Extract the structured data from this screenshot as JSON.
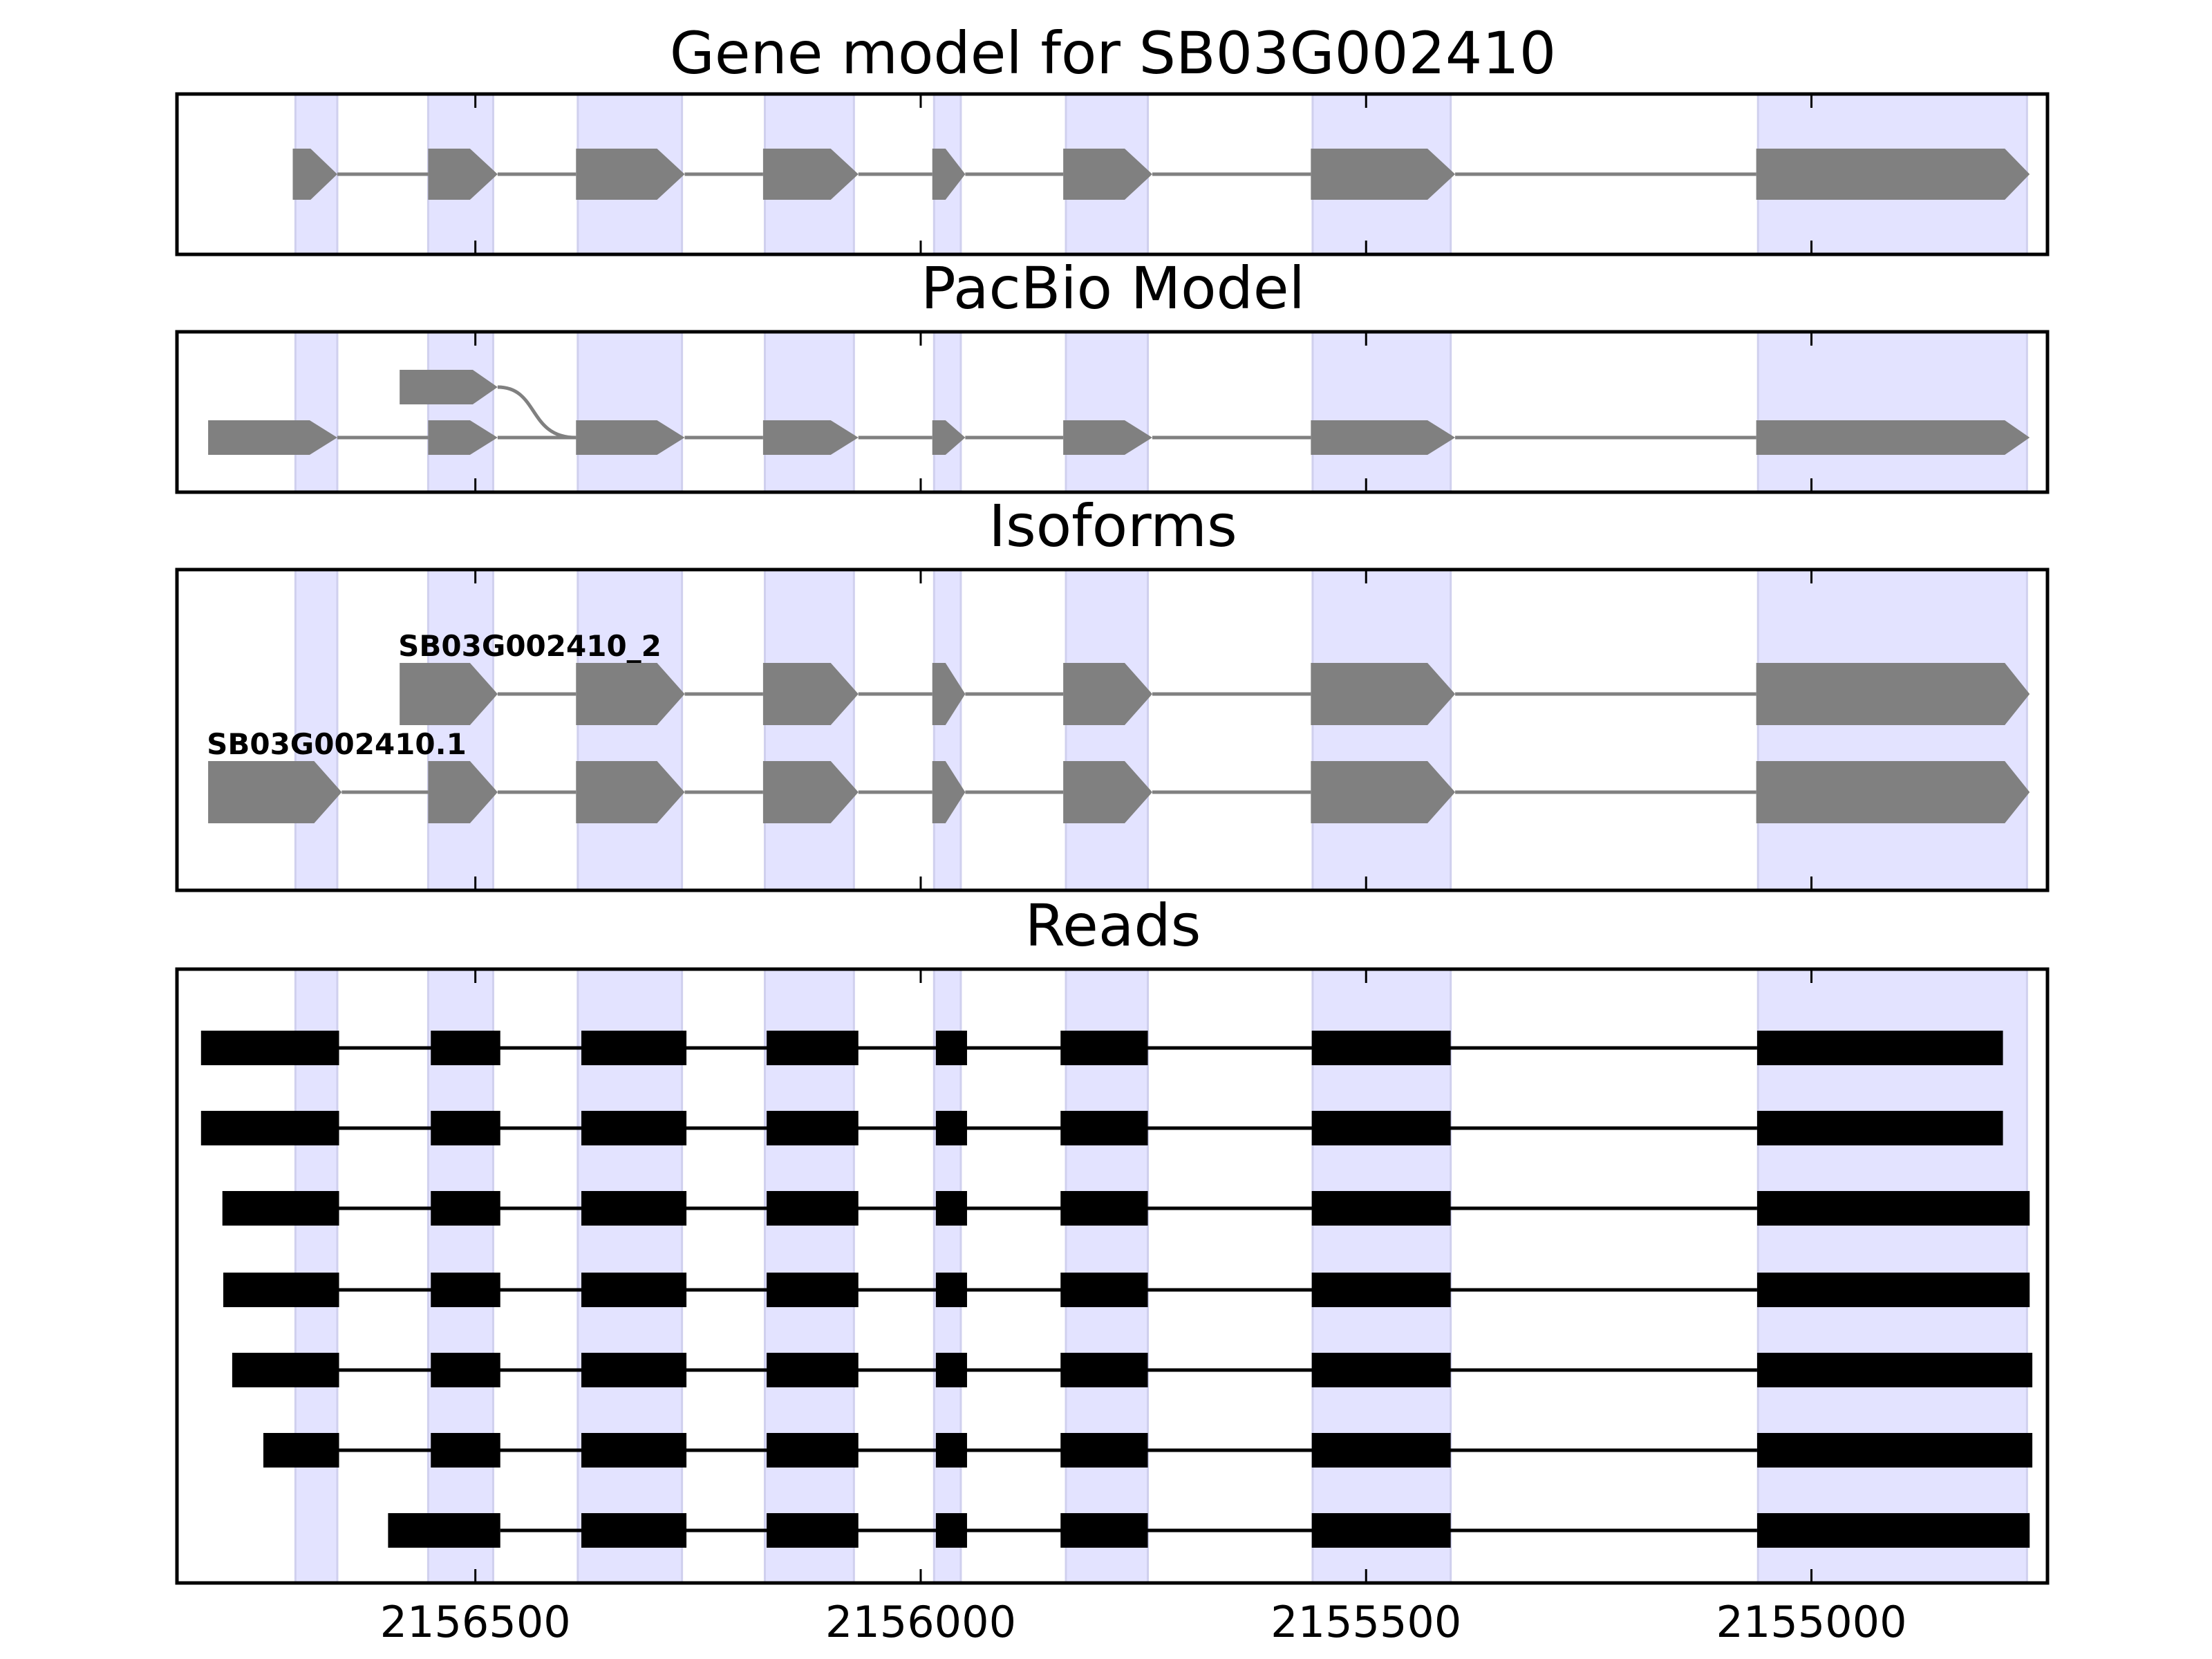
{
  "chart_data": {
    "type": "gene-track",
    "x_axis": {
      "reversed": true,
      "xlim": [
        2156835,
        2154735
      ],
      "ticks": [
        2156500,
        2156000,
        2155500,
        2155000
      ],
      "tick_labels": [
        "2156500",
        "2156000",
        "2155500",
        "2155000"
      ]
    },
    "shading_color": "#e3e3ff",
    "feature_color": "#808080",
    "read_color": "#000000",
    "shaded_exons": [
      [
        2156702,
        2156655
      ],
      [
        2156553,
        2156480
      ],
      [
        2156385,
        2156268
      ],
      [
        2156175,
        2156075
      ],
      [
        2155985,
        2155955
      ],
      [
        2155837,
        2155745
      ],
      [
        2155560,
        2155405
      ],
      [
        2155060,
        2154758
      ]
    ],
    "panels": [
      {
        "id": "gene-model",
        "title": "Gene model for SB03G002410",
        "transcripts": [
          {
            "label": "",
            "strand": "-",
            "exons": [
              [
                2156705,
                2156655
              ],
              [
                2156553,
                2156475
              ],
              [
                2156387,
                2156265
              ],
              [
                2156177,
                2156070
              ],
              [
                2155987,
                2155950
              ],
              [
                2155840,
                2155740
              ],
              [
                2155562,
                2155400
              ],
              [
                2155062,
                2154755
              ]
            ]
          }
        ]
      },
      {
        "id": "pacbio-model",
        "title": "PacBio Model",
        "transcripts": [
          {
            "label": "",
            "strand": "-",
            "exons": [
              [
                2156800,
                2156655
              ],
              [
                2156553,
                2156475
              ],
              [
                2156387,
                2156265
              ],
              [
                2156177,
                2156070
              ],
              [
                2155987,
                2155950
              ],
              [
                2155840,
                2155740
              ],
              [
                2155562,
                2155400
              ],
              [
                2155062,
                2154755
              ]
            ]
          },
          {
            "label": "",
            "strand": "-",
            "exons": [
              [
                2156585,
                2156475
              ]
            ],
            "joins_to_exon": [
              2156387,
              2156265
            ]
          }
        ]
      },
      {
        "id": "isoforms",
        "title": "Isoforms",
        "transcripts": [
          {
            "label": "SB03G002410_2",
            "strand": "-",
            "exons": [
              [
                2156585,
                2156475
              ],
              [
                2156387,
                2156265
              ],
              [
                2156177,
                2156070
              ],
              [
                2155987,
                2155950
              ],
              [
                2155840,
                2155740
              ],
              [
                2155562,
                2155400
              ],
              [
                2155062,
                2154755
              ]
            ]
          },
          {
            "label": "SB03G002410.1",
            "strand": "-",
            "exons": [
              [
                2156800,
                2156650
              ],
              [
                2156553,
                2156475
              ],
              [
                2156387,
                2156265
              ],
              [
                2156177,
                2156070
              ],
              [
                2155987,
                2155950
              ],
              [
                2155840,
                2155740
              ],
              [
                2155562,
                2155400
              ],
              [
                2155062,
                2154755
              ]
            ]
          }
        ]
      },
      {
        "id": "reads",
        "title": "Reads",
        "reads": [
          [
            [
              2156808,
              2156653
            ],
            [
              2156550,
              2156472
            ],
            [
              2156381,
              2156263
            ],
            [
              2156173,
              2156070
            ],
            [
              2155983,
              2155948
            ],
            [
              2155843,
              2155745
            ],
            [
              2155561,
              2155405
            ],
            [
              2155061,
              2154785
            ]
          ],
          [
            [
              2156808,
              2156653
            ],
            [
              2156550,
              2156472
            ],
            [
              2156381,
              2156263
            ],
            [
              2156173,
              2156070
            ],
            [
              2155983,
              2155948
            ],
            [
              2155843,
              2155745
            ],
            [
              2155561,
              2155405
            ],
            [
              2155061,
              2154785
            ]
          ],
          [
            [
              2156784,
              2156653
            ],
            [
              2156550,
              2156472
            ],
            [
              2156381,
              2156263
            ],
            [
              2156173,
              2156070
            ],
            [
              2155983,
              2155948
            ],
            [
              2155843,
              2155745
            ],
            [
              2155561,
              2155405
            ],
            [
              2155061,
              2154755
            ]
          ],
          [
            [
              2156783,
              2156653
            ],
            [
              2156550,
              2156472
            ],
            [
              2156381,
              2156263
            ],
            [
              2156173,
              2156070
            ],
            [
              2155983,
              2155948
            ],
            [
              2155843,
              2155745
            ],
            [
              2155561,
              2155405
            ],
            [
              2155061,
              2154755
            ]
          ],
          [
            [
              2156773,
              2156653
            ],
            [
              2156550,
              2156472
            ],
            [
              2156381,
              2156263
            ],
            [
              2156173,
              2156070
            ],
            [
              2155983,
              2155948
            ],
            [
              2155843,
              2155745
            ],
            [
              2155561,
              2155405
            ],
            [
              2155061,
              2154752
            ]
          ],
          [
            [
              2156738,
              2156653
            ],
            [
              2156550,
              2156472
            ],
            [
              2156381,
              2156263
            ],
            [
              2156173,
              2156070
            ],
            [
              2155983,
              2155948
            ],
            [
              2155843,
              2155745
            ],
            [
              2155561,
              2155405
            ],
            [
              2155061,
              2154752
            ]
          ],
          [
            [
              2156598,
              2156472
            ],
            [
              2156381,
              2156263
            ],
            [
              2156173,
              2156070
            ],
            [
              2155983,
              2155948
            ],
            [
              2155843,
              2155745
            ],
            [
              2155561,
              2155405
            ],
            [
              2155061,
              2154755
            ]
          ]
        ]
      }
    ]
  }
}
